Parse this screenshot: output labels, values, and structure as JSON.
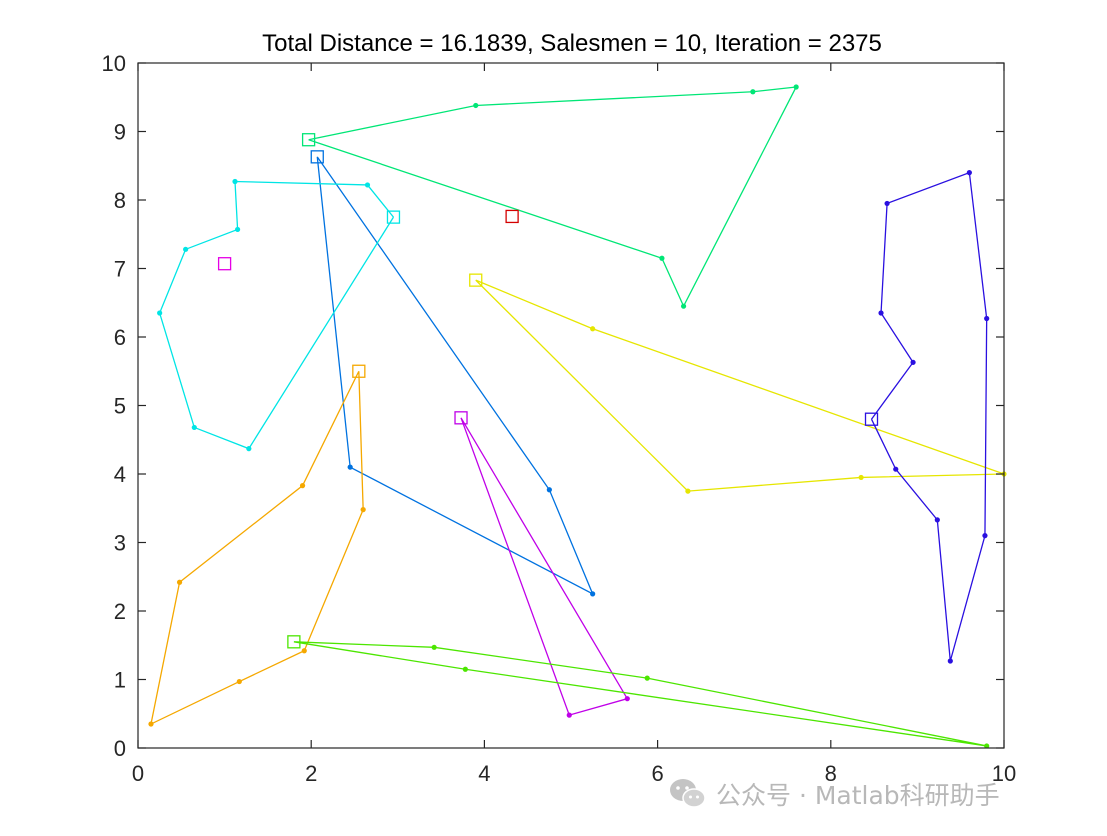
{
  "chart_data": {
    "type": "scatter",
    "title": "Total Distance = 16.1839, Salesmen = 10, Iteration = 2375",
    "xlim": [
      0,
      10
    ],
    "ylim": [
      0,
      10
    ],
    "xticks": [
      0,
      2,
      4,
      6,
      8,
      10
    ],
    "yticks": [
      0,
      1,
      2,
      3,
      4,
      5,
      6,
      7,
      8,
      9,
      10
    ],
    "xtick_labels": [
      "0",
      "2",
      "4",
      "6",
      "8",
      "10"
    ],
    "ytick_labels": [
      "0",
      "1",
      "2",
      "3",
      "4",
      "5",
      "6",
      "7",
      "8",
      "9",
      "10"
    ],
    "grid": false,
    "routes": [
      {
        "color": "#00e676",
        "depot": [
          1.97,
          8.88
        ],
        "points": [
          [
            1.97,
            8.88
          ],
          [
            3.9,
            9.38
          ],
          [
            7.1,
            9.58
          ],
          [
            7.6,
            9.65
          ],
          [
            6.3,
            6.45
          ],
          [
            6.05,
            7.15
          ],
          [
            1.97,
            8.88
          ]
        ]
      },
      {
        "color": "#0072e0",
        "depot": [
          2.07,
          8.63
        ],
        "points": [
          [
            2.07,
            8.63
          ],
          [
            4.75,
            3.77
          ],
          [
            5.25,
            2.25
          ],
          [
            2.45,
            4.1
          ],
          [
            2.07,
            8.63
          ]
        ]
      },
      {
        "color": "#00e5e5",
        "depot": [
          2.95,
          7.75
        ],
        "points": [
          [
            2.95,
            7.75
          ],
          [
            2.65,
            8.22
          ],
          [
            1.12,
            8.27
          ],
          [
            1.15,
            7.57
          ],
          [
            0.55,
            7.28
          ],
          [
            0.25,
            6.35
          ],
          [
            0.65,
            4.68
          ],
          [
            1.28,
            4.37
          ],
          [
            2.95,
            7.75
          ]
        ]
      },
      {
        "color": "#d40000",
        "depot": [
          4.32,
          7.76
        ],
        "points": []
      },
      {
        "color": "#e600e6",
        "depot": [
          1.0,
          7.07
        ],
        "points": []
      },
      {
        "color": "#e6e600",
        "depot": [
          3.9,
          6.83
        ],
        "points": [
          [
            3.9,
            6.83
          ],
          [
            5.25,
            6.12
          ],
          [
            10.0,
            4.0
          ],
          [
            8.35,
            3.95
          ],
          [
            6.35,
            3.75
          ],
          [
            3.9,
            6.83
          ]
        ]
      },
      {
        "color": "#f5a800",
        "depot": [
          2.55,
          5.5
        ],
        "points": [
          [
            2.55,
            5.5
          ],
          [
            1.9,
            3.83
          ],
          [
            0.48,
            2.42
          ],
          [
            0.15,
            0.35
          ],
          [
            1.17,
            0.97
          ],
          [
            1.92,
            1.42
          ],
          [
            2.6,
            3.48
          ],
          [
            2.55,
            5.5
          ]
        ]
      },
      {
        "color": "#c000e8",
        "depot": [
          3.73,
          4.82
        ],
        "points": [
          [
            3.73,
            4.82
          ],
          [
            5.65,
            0.72
          ],
          [
            4.98,
            0.48
          ],
          [
            3.73,
            4.82
          ]
        ]
      },
      {
        "color": "#2a10e0",
        "depot": [
          8.47,
          4.8
        ],
        "points": [
          [
            8.47,
            4.8
          ],
          [
            8.95,
            5.63
          ],
          [
            8.58,
            6.35
          ],
          [
            8.65,
            7.95
          ],
          [
            9.6,
            8.4
          ],
          [
            9.8,
            6.27
          ],
          [
            9.78,
            3.1
          ],
          [
            9.38,
            1.27
          ],
          [
            9.23,
            3.33
          ],
          [
            8.75,
            4.07
          ],
          [
            8.47,
            4.8
          ]
        ]
      },
      {
        "color": "#4ce600",
        "depot": [
          1.8,
          1.55
        ],
        "points": [
          [
            1.8,
            1.55
          ],
          [
            3.42,
            1.47
          ],
          [
            5.88,
            1.02
          ],
          [
            9.8,
            0.03
          ],
          [
            3.78,
            1.15
          ],
          [
            1.8,
            1.55
          ]
        ]
      }
    ]
  },
  "watermark": {
    "text": "公众号 · Matlab科研助手",
    "icon": "wechat-icon"
  }
}
